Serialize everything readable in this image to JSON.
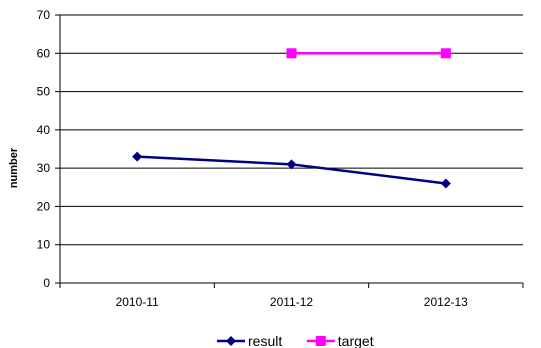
{
  "chart_data": {
    "type": "line",
    "title": "",
    "xlabel": "",
    "ylabel": "number",
    "categories": [
      "2010-11",
      "2011-12",
      "2012-13"
    ],
    "ylim": [
      0,
      70
    ],
    "yticks": [
      0,
      10,
      20,
      30,
      40,
      50,
      60,
      70
    ],
    "grid": "horizontal",
    "legend_position": "bottom",
    "series": [
      {
        "name": "result",
        "values": [
          33,
          31,
          26
        ],
        "color": "#000080",
        "marker": "diamond"
      },
      {
        "name": "target",
        "values": [
          null,
          60,
          60
        ],
        "color": "#ff00ff",
        "marker": "square"
      }
    ]
  }
}
